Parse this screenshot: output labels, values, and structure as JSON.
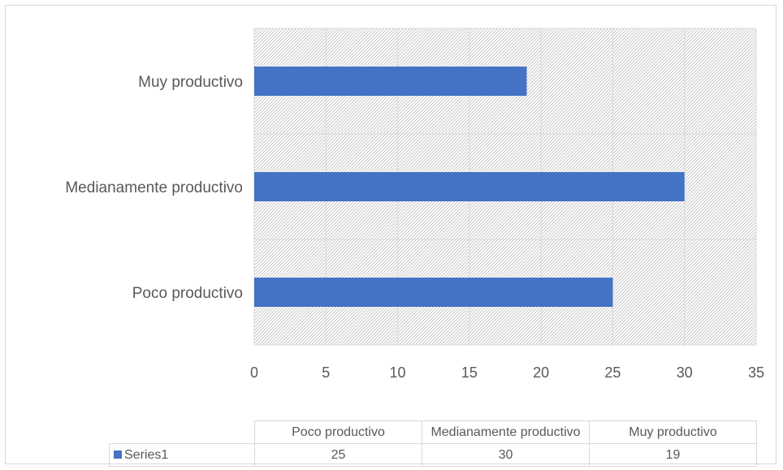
{
  "chart_data": {
    "type": "bar",
    "orientation": "horizontal",
    "categories": [
      "Poco productivo",
      "Medianamente productivo",
      "Muy productivo"
    ],
    "series": [
      {
        "name": "Series1",
        "values": [
          25,
          30,
          19
        ],
        "color": "#4472c4"
      }
    ],
    "xlim": [
      0,
      35
    ],
    "x_ticks": [
      0,
      5,
      10,
      15,
      20,
      25,
      30,
      35
    ],
    "grid": true,
    "plot_background": "hatched",
    "legend": "data-table-below",
    "title": "",
    "xlabel": "",
    "ylabel": ""
  }
}
